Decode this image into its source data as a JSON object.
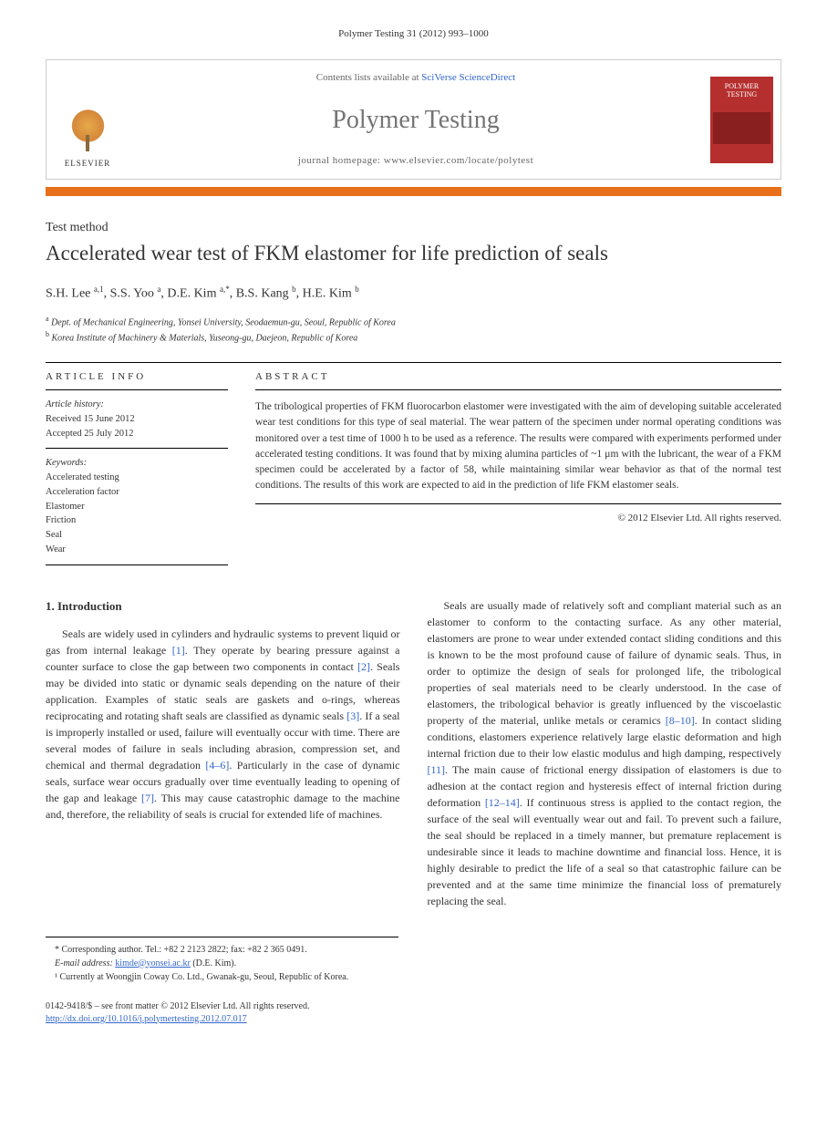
{
  "header_ref": "Polymer Testing 31 (2012) 993–1000",
  "banner": {
    "contents_prefix": "Contents lists available at ",
    "contents_link": "SciVerse ScienceDirect",
    "journal_name": "Polymer Testing",
    "homepage_prefix": "journal homepage: ",
    "homepage_url": "www.elsevier.com/locate/polytest",
    "publisher": "ELSEVIER",
    "cover_title": "POLYMER TESTING"
  },
  "article": {
    "section_label": "Test method",
    "title": "Accelerated wear test of FKM elastomer for life prediction of seals",
    "authors_html": "S.H. Lee <sup>a,1</sup>, S.S. Yoo <sup>a</sup>, D.E. Kim <sup>a,*</sup>, B.S. Kang <sup>b</sup>, H.E. Kim <sup>b</sup>",
    "affiliations": [
      "Dept. of Mechanical Engineering, Yonsei University, Seodaemun-gu, Seoul, Republic of Korea",
      "Korea Institute of Machinery & Materials, Yuseong-gu, Daejeon, Republic of Korea"
    ],
    "aff_markers": [
      "a",
      "b"
    ]
  },
  "info": {
    "heading": "article info",
    "history_label": "Article history:",
    "received": "Received 15 June 2012",
    "accepted": "Accepted 25 July 2012",
    "keywords_label": "Keywords:",
    "keywords": [
      "Accelerated testing",
      "Acceleration factor",
      "Elastomer",
      "Friction",
      "Seal",
      "Wear"
    ]
  },
  "abstract": {
    "heading": "abstract",
    "text": "The tribological properties of FKM fluorocarbon elastomer were investigated with the aim of developing suitable accelerated wear test conditions for this type of seal material. The wear pattern of the specimen under normal operating conditions was monitored over a test time of 1000 h to be used as a reference. The results were compared with experiments performed under accelerated testing conditions. It was found that by mixing alumina particles of ~1 μm with the lubricant, the wear of a FKM specimen could be accelerated by a factor of 58, while maintaining similar wear behavior as that of the normal test conditions. The results of this work are expected to aid in the prediction of life FKM elastomer seals.",
    "copyright": "© 2012 Elsevier Ltd. All rights reserved."
  },
  "body": {
    "section_number": "1.",
    "section_title": "Introduction",
    "col1_p1": "Seals are widely used in cylinders and hydraulic systems to prevent liquid or gas from internal leakage [1]. They operate by bearing pressure against a counter surface to close the gap between two components in contact [2]. Seals may be divided into static or dynamic seals depending on the nature of their application. Examples of static seals are gaskets and o-rings, whereas reciprocating and rotating shaft seals are classified as dynamic seals [3]. If a seal is improperly installed or used, failure will eventually occur with time. There are several modes of failure in seals including abrasion, compression set, and chemical and thermal degradation [4–6]. Particularly in the case of dynamic seals, surface wear occurs gradually over time eventually leading to opening of the gap and leakage [7]. This may cause catastrophic damage to the machine and, therefore, the reliability of seals is crucial for extended life of machines.",
    "col2_p1": "Seals are usually made of relatively soft and compliant material such as an elastomer to conform to the contacting surface. As any other material, elastomers are prone to wear under extended contact sliding conditions and this is known to be the most profound cause of failure of dynamic seals. Thus, in order to optimize the design of seals for prolonged life, the tribological properties of seal materials need to be clearly understood. In the case of elastomers, the tribological behavior is greatly influenced by the viscoelastic property of the material, unlike metals or ceramics [8–10]. In contact sliding conditions, elastomers experience relatively large elastic deformation and high internal friction due to their low elastic modulus and high damping, respectively [11]. The main cause of frictional energy dissipation of elastomers is due to adhesion at the contact region and hysteresis effect of internal friction during deformation [12–14]. If continuous stress is applied to the contact region, the surface of the seal will eventually wear out and fail. To prevent such a failure, the seal should be replaced in a timely manner, but premature replacement is undesirable since it leads to machine downtime and financial loss. Hence, it is highly desirable to predict the life of a seal so that catastrophic failure can be prevented and at the same time minimize the financial loss of prematurely replacing the seal."
  },
  "footnotes": {
    "corr": "* Corresponding author. Tel.: +82 2 2123 2822; fax: +82 2 365 0491.",
    "email_label": "E-mail address:",
    "email": "kimde@yonsei.ac.kr",
    "email_suffix": "(D.E. Kim).",
    "note1": "¹ Currently at Woongjin Coway Co. Ltd., Gwanak-gu, Seoul, Republic of Korea."
  },
  "footer": {
    "copyright_line": "0142-9418/$ – see front matter © 2012 Elsevier Ltd. All rights reserved.",
    "doi": "http://dx.doi.org/10.1016/j.polymertesting.2012.07.017"
  },
  "colors": {
    "orange_bar": "#e8701a",
    "cover_red": "#b62f2f",
    "link_blue": "#3366cc",
    "text": "#333333"
  }
}
